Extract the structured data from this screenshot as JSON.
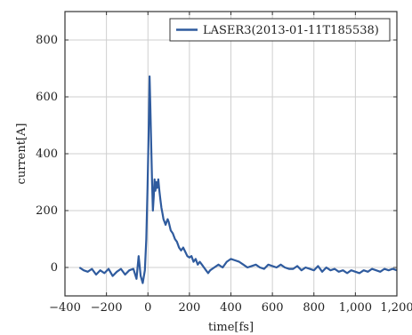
{
  "chart_data": {
    "type": "line",
    "title": "",
    "xlabel": "time[fs]",
    "ylabel": "current[A]",
    "xlim": [
      -400,
      1200
    ],
    "ylim": [
      -100,
      900
    ],
    "xticks": [
      -400,
      -200,
      0,
      200,
      400,
      600,
      800,
      1000,
      1200
    ],
    "xtick_labels": [
      "−400",
      "−200",
      "0",
      "200",
      "400",
      "600",
      "800",
      "1,000",
      "1,200"
    ],
    "yticks": [
      0,
      200,
      400,
      600,
      800
    ],
    "ytick_labels": [
      "0",
      "200",
      "400",
      "600",
      "800"
    ],
    "grid": true,
    "legend_position": "top-right",
    "colors": {
      "series": "#2f5b9e"
    },
    "series": [
      {
        "name": "LASER3(2013-01-11T185538)",
        "x": [
          -330,
          -310,
          -290,
          -270,
          -250,
          -230,
          -210,
          -190,
          -170,
          -150,
          -130,
          -110,
          -90,
          -70,
          -55,
          -45,
          -35,
          -25,
          -15,
          -8,
          -2,
          3,
          8,
          12,
          16,
          20,
          24,
          28,
          32,
          36,
          40,
          45,
          50,
          55,
          60,
          65,
          70,
          75,
          80,
          85,
          90,
          95,
          100,
          110,
          120,
          130,
          140,
          150,
          160,
          170,
          180,
          190,
          200,
          210,
          220,
          230,
          240,
          250,
          260,
          270,
          280,
          290,
          300,
          320,
          340,
          360,
          380,
          400,
          420,
          440,
          460,
          480,
          500,
          520,
          540,
          560,
          580,
          600,
          620,
          640,
          660,
          680,
          700,
          720,
          740,
          760,
          780,
          800,
          820,
          840,
          860,
          880,
          900,
          920,
          940,
          960,
          980,
          1000,
          1020,
          1040,
          1060,
          1080,
          1100,
          1120,
          1140,
          1160,
          1180,
          1200
        ],
        "y": [
          0,
          -10,
          -15,
          -5,
          -25,
          -10,
          -20,
          -5,
          -30,
          -15,
          -5,
          -25,
          -10,
          -5,
          -40,
          40,
          -30,
          -55,
          -10,
          100,
          280,
          450,
          672,
          560,
          420,
          300,
          200,
          250,
          310,
          270,
          300,
          280,
          310,
          270,
          240,
          210,
          190,
          170,
          160,
          150,
          160,
          170,
          160,
          130,
          120,
          100,
          90,
          70,
          60,
          70,
          55,
          40,
          35,
          40,
          20,
          30,
          10,
          20,
          10,
          0,
          -10,
          -20,
          -10,
          0,
          10,
          0,
          20,
          30,
          25,
          20,
          10,
          0,
          5,
          10,
          0,
          -5,
          10,
          5,
          0,
          10,
          0,
          -5,
          -5,
          5,
          -10,
          0,
          -5,
          -10,
          5,
          -15,
          0,
          -10,
          -5,
          -15,
          -10,
          -20,
          -10,
          -15,
          -20,
          -10,
          -15,
          -5,
          -10,
          -15,
          -5,
          -10,
          -5,
          -10
        ]
      }
    ]
  }
}
